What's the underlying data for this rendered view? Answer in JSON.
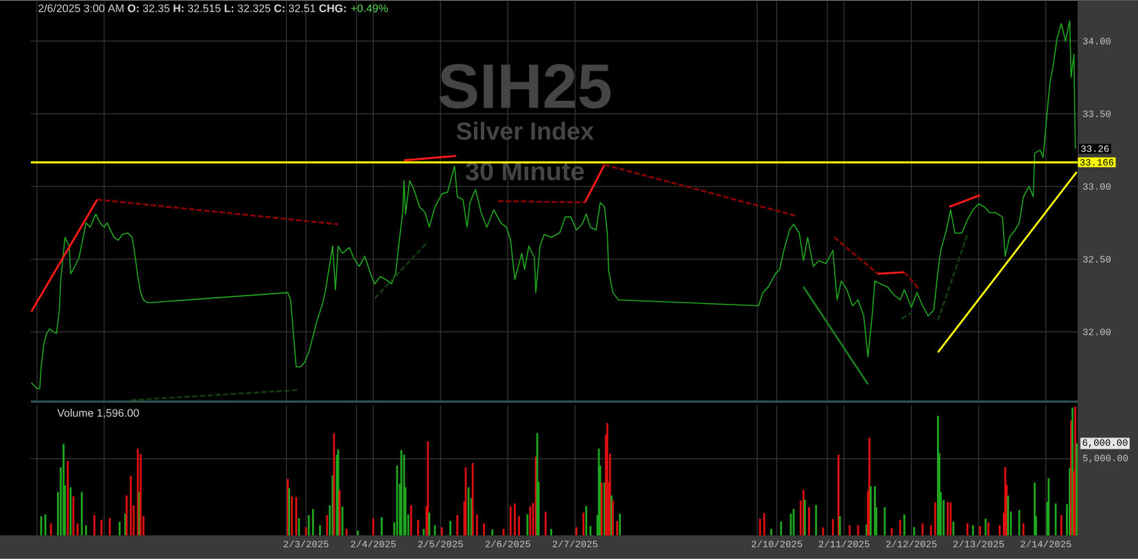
{
  "chart_data": [
    {
      "type": "line",
      "title": "2/6/2025 3:00 AM **O:** 32.35 **H:** 32.515 **L:** 32.325 **C:** 32.51 **CHG:**",
      "subtitle": "+0.49%",
      "annotations": [
        "SIH25",
        "Silver Index",
        "30 Minute",
        {
          "text": "33.26",
          "x": "2025-02-14T10:30",
          "y": 33.26
        }
      ],
      "x": [
        "2025-01-29T22:00",
        "2025-01-30T00:00",
        "2025-01-30T01:00",
        "2025-01-30T01:30",
        "2025-01-30T02:30",
        "2025-01-30T03:30",
        "2025-01-30T04:30",
        "2025-01-30T06:00",
        "2025-01-30T07:00",
        "2025-01-30T08:00",
        "2025-01-30T08:30",
        "2025-01-30T10:00",
        "2025-01-30T11:30",
        "2025-01-30T12:00",
        "2025-01-30T13:00",
        "2025-01-30T15:00",
        "2025-01-30T16:30",
        "2025-01-30T17:30",
        "2025-01-30T19:00",
        "2025-01-30T21:00",
        "2025-01-30T22:30",
        "2025-01-31T00:00",
        "2025-01-31T01:00",
        "2025-01-31T03:30",
        "2025-01-31T05:00",
        "2025-01-31T06:30",
        "2025-01-31T08:30",
        "2025-01-31T10:00",
        "2025-01-31T11:00",
        "2025-01-31T12:00",
        "2025-01-31T13:00",
        "2025-01-31T14:00",
        "2025-01-31T15:30",
        "2025-02-02T17:30",
        "2025-02-02T18:30",
        "2025-02-02T19:30",
        "2025-02-02T20:30",
        "2025-02-02T22:00",
        "2025-02-02T23:30",
        "2025-02-03T01:00",
        "2025-02-03T02:30",
        "2025-02-03T04:00",
        "2025-02-03T06:00",
        "2025-02-03T07:00",
        "2025-02-03T09:30",
        "2025-02-03T10:30",
        "2025-02-03T11:30",
        "2025-02-03T13:00",
        "2025-02-03T15:30",
        "2025-02-03T17:00",
        "2025-02-03T19:00",
        "2025-02-03T21:00",
        "2025-02-03T23:00",
        "2025-02-04T00:30",
        "2025-02-04T02:30",
        "2025-02-04T04:30",
        "2025-02-04T06:30",
        "2025-02-04T08:00",
        "2025-02-04T09:00",
        "2025-02-04T10:30",
        "2025-02-04T11:00",
        "2025-02-04T11:30",
        "2025-02-04T13:00",
        "2025-02-04T14:30",
        "2025-02-04T16:30",
        "2025-02-04T18:30",
        "2025-02-04T20:00",
        "2025-02-04T22:00",
        "2025-02-05T00:30",
        "2025-02-05T02:30",
        "2025-02-05T05:00",
        "2025-02-05T06:00",
        "2025-02-05T08:00",
        "2025-02-05T09:30",
        "2025-02-05T10:30",
        "2025-02-05T12:30",
        "2025-02-05T14:30",
        "2025-02-05T16:30",
        "2025-02-05T19:00",
        "2025-02-05T21:30",
        "2025-02-05T23:30",
        "2025-02-06T01:00",
        "2025-02-06T02:30",
        "2025-02-06T05:00",
        "2025-02-06T06:00",
        "2025-02-06T07:30",
        "2025-02-06T09:30",
        "2025-02-06T10:00",
        "2025-02-06T11:30",
        "2025-02-06T13:00",
        "2025-02-06T15:30",
        "2025-02-06T18:30",
        "2025-02-06T20:30",
        "2025-02-06T22:30",
        "2025-02-07T00:30",
        "2025-02-07T02:30",
        "2025-02-07T04:00",
        "2025-02-07T05:30",
        "2025-02-07T07:30",
        "2025-02-07T09:00",
        "2025-02-07T10:30",
        "2025-02-07T11:30",
        "2025-02-07T12:00",
        "2025-02-07T13:30",
        "2025-02-07T15:30",
        "2025-02-09T17:30",
        "2025-02-09T19:00",
        "2025-02-09T21:00",
        "2025-02-09T23:30",
        "2025-02-10T01:00",
        "2025-02-10T02:30",
        "2025-02-10T04:30",
        "2025-02-10T06:00",
        "2025-02-10T08:00",
        "2025-02-10T09:30",
        "2025-02-10T11:00",
        "2025-02-10T13:00",
        "2025-02-10T15:00",
        "2025-02-10T17:30",
        "2025-02-10T20:00",
        "2025-02-10T21:30",
        "2025-02-10T23:00",
        "2025-02-11T01:00",
        "2025-02-11T03:00",
        "2025-02-11T05:00",
        "2025-02-11T07:00",
        "2025-02-11T08:30",
        "2025-02-11T10:00",
        "2025-02-11T11:00",
        "2025-02-11T13:00",
        "2025-02-11T15:30",
        "2025-02-11T17:30",
        "2025-02-11T20:00",
        "2025-02-11T21:30",
        "2025-02-12T00:00",
        "2025-02-12T02:00",
        "2025-02-12T04:00",
        "2025-02-12T06:00",
        "2025-02-12T08:00",
        "2025-02-12T09:30",
        "2025-02-12T10:30",
        "2025-02-12T12:30",
        "2025-02-12T14:00",
        "2025-02-12T15:30",
        "2025-02-12T18:00",
        "2025-02-12T20:00",
        "2025-02-12T22:00",
        "2025-02-13T00:00",
        "2025-02-13T02:00",
        "2025-02-13T04:00",
        "2025-02-13T06:00",
        "2025-02-13T08:30",
        "2025-02-13T09:30",
        "2025-02-13T11:00",
        "2025-02-13T13:00",
        "2025-02-13T14:30",
        "2025-02-13T16:00",
        "2025-02-13T18:00",
        "2025-02-13T19:30",
        "2025-02-13T20:00",
        "2025-02-13T22:00",
        "2025-02-13T23:00",
        "2025-02-14T00:30",
        "2025-02-14T01:30",
        "2025-02-14T02:30",
        "2025-02-14T04:00",
        "2025-02-14T05:30",
        "2025-02-14T07:00",
        "2025-02-14T08:30",
        "2025-02-14T09:00",
        "2025-02-14T10:00",
        "2025-02-14T10:30"
      ],
      "series": [
        {
          "color": "#1fa81f",
          "values": [
            31.65,
            31.61,
            31.61,
            31.76,
            31.92,
            31.99,
            32.02,
            32.0,
            31.99,
            32.15,
            32.36,
            32.65,
            32.59,
            32.4,
            32.43,
            32.51,
            32.65,
            32.75,
            32.72,
            32.81,
            32.75,
            32.72,
            32.75,
            32.65,
            32.63,
            32.67,
            32.68,
            32.65,
            32.52,
            32.38,
            32.27,
            32.22,
            32.2,
            32.27,
            32.22,
            31.99,
            31.76,
            31.76,
            31.79,
            31.86,
            31.97,
            32.08,
            32.2,
            32.29,
            32.59,
            32.29,
            32.59,
            32.54,
            32.58,
            32.51,
            32.45,
            32.52,
            32.4,
            32.33,
            32.38,
            32.36,
            32.33,
            32.4,
            32.58,
            32.82,
            33.04,
            32.81,
            33.04,
            32.98,
            32.86,
            32.82,
            32.72,
            32.86,
            32.95,
            32.96,
            33.14,
            32.93,
            32.91,
            32.72,
            32.89,
            32.98,
            32.82,
            32.72,
            32.84,
            32.75,
            32.72,
            32.63,
            32.36,
            32.54,
            32.43,
            32.59,
            32.51,
            32.27,
            32.59,
            32.67,
            32.65,
            32.68,
            32.79,
            32.79,
            32.7,
            32.74,
            32.81,
            32.72,
            32.7,
            32.89,
            32.86,
            32.68,
            32.42,
            32.27,
            32.22,
            32.18,
            32.27,
            32.31,
            32.4,
            32.43,
            32.56,
            32.7,
            32.74,
            32.68,
            32.49,
            32.65,
            32.45,
            32.49,
            32.47,
            32.56,
            32.22,
            32.35,
            32.29,
            32.18,
            32.22,
            32.11,
            31.83,
            32.11,
            32.35,
            32.33,
            32.31,
            32.26,
            32.22,
            32.29,
            32.17,
            32.27,
            32.18,
            32.11,
            32.15,
            32.42,
            32.56,
            32.7,
            32.84,
            32.68,
            32.68,
            32.77,
            32.84,
            32.88,
            32.86,
            32.82,
            32.82,
            32.79,
            32.52,
            32.65,
            32.7,
            32.75,
            32.93,
            33.0,
            32.93,
            33.23,
            33.25,
            33.2,
            33.52,
            33.72,
            33.82,
            34.02,
            34.12,
            34.0,
            34.14,
            33.75,
            33.91,
            33.26
          ]
        },
        {
          "type": "line",
          "color": "#ff1a1a",
          "line_style": "solid",
          "x": [
            "2025-01-29T22:00",
            "2025-01-30T21:30"
          ],
          "values": [
            32.14,
            32.91
          ]
        },
        {
          "type": "line",
          "color": "#8b0000",
          "line_style": "dashed",
          "x": [
            "2025-01-30T21:30",
            "2025-02-03T11:30"
          ],
          "values": [
            32.91,
            32.74
          ]
        },
        {
          "type": "line",
          "color": "#103c10",
          "line_style": "dashed",
          "x": [
            "2025-01-31T09:30",
            "2025-02-02T21:00"
          ],
          "values": [
            31.53,
            31.6
          ]
        },
        {
          "type": "line",
          "color": "#103c10",
          "line_style": "dashed",
          "x": [
            "2025-02-04T00:30",
            "2025-02-04T19:30"
          ],
          "values": [
            32.23,
            32.62
          ]
        },
        {
          "type": "line",
          "color": "#ff1a1a",
          "line_style": "solid",
          "x": [
            "2025-02-04T11:00",
            "2025-02-05T05:30"
          ],
          "values": [
            33.18,
            33.21
          ]
        },
        {
          "type": "line",
          "color": "#8b0000",
          "line_style": "dashed",
          "x": [
            "2025-02-05T20:30",
            "2025-02-07T03:30"
          ],
          "values": [
            32.9,
            32.89
          ]
        },
        {
          "type": "line",
          "color": "#ff1a1a",
          "line_style": "solid",
          "x": [
            "2025-02-07T03:30",
            "2025-02-07T10:30"
          ],
          "values": [
            32.89,
            33.15
          ]
        },
        {
          "type": "line",
          "color": "#8b0000",
          "line_style": "dashed",
          "x": [
            "2025-02-07T10:30",
            "2025-02-10T06:30"
          ],
          "values": [
            33.15,
            32.8
          ]
        },
        {
          "type": "line",
          "color": "#1e7a1e",
          "line_style": "solid",
          "x": [
            "2025-02-10T09:30",
            "2025-02-11T08:30"
          ],
          "values": [
            32.31,
            31.64
          ]
        },
        {
          "type": "line",
          "color": "#8b0000",
          "line_style": "dashed",
          "x": [
            "2025-02-10T20:30",
            "2025-02-11T12:00"
          ],
          "values": [
            32.65,
            32.4
          ]
        },
        {
          "type": "line",
          "color": "#ff1a1a",
          "line_style": "solid",
          "x": [
            "2025-02-11T12:00",
            "2025-02-11T21:30"
          ],
          "values": [
            32.4,
            32.41
          ]
        },
        {
          "type": "line",
          "color": "#8b0000",
          "line_style": "dashed",
          "x": [
            "2025-02-11T21:30",
            "2025-02-12T02:30"
          ],
          "values": [
            32.41,
            32.3
          ]
        },
        {
          "type": "line",
          "color": "#103c10",
          "line_style": "dashed",
          "x": [
            "2025-02-11T20:30",
            "2025-02-12T00:00"
          ],
          "values": [
            32.09,
            32.13
          ]
        },
        {
          "type": "line",
          "color": "#103c10",
          "line_style": "dashed",
          "x": [
            "2025-02-12T09:30",
            "2025-02-12T20:00"
          ],
          "values": [
            32.08,
            32.67
          ]
        },
        {
          "type": "line",
          "color": "#ff1a1a",
          "line_style": "solid",
          "x": [
            "2025-02-12T13:30",
            "2025-02-13T00:30"
          ],
          "values": [
            32.86,
            32.94
          ]
        },
        {
          "type": "line",
          "color": "#ffff00",
          "line_style": "solid",
          "x": [
            "2025-02-12T09:30",
            "2025-02-14T11:00"
          ],
          "values": [
            31.86,
            33.1
          ]
        }
      ],
      "ref_lines": [
        {
          "axis": "y",
          "value": 33.166,
          "label": "33.166",
          "color": "#ffff00"
        }
      ],
      "xlim": [
        "2025-01-29T21:50",
        "2025-02-14T11:20"
      ],
      "ylim": [
        31.52,
        34.28
      ],
      "xticks": [
        {
          "value": "2025-01-30",
          "label": null
        },
        {
          "value": "2025-01-31",
          "label": null
        },
        {
          "value": "2025-02-02T17:00",
          "label": null
        },
        {
          "value": "2025-02-03",
          "label": null
        },
        {
          "value": "2025-02-03T18:00",
          "label": null
        },
        {
          "value": "2025-02-04",
          "label": null
        },
        {
          "value": "2025-02-05",
          "label": null
        },
        {
          "value": "2025-02-06",
          "label": null
        },
        {
          "value": "2025-02-07",
          "label": null
        },
        {
          "value": "2025-02-09T17:00",
          "label": null
        },
        {
          "value": "2025-02-10",
          "label": null
        },
        {
          "value": "2025-02-10T18:00",
          "label": null
        },
        {
          "value": "2025-02-11",
          "label": null
        },
        {
          "value": "2025-02-12",
          "label": null
        },
        {
          "value": "2025-02-13",
          "label": null
        },
        {
          "value": "2025-02-14",
          "label": null
        }
      ],
      "yticks": [
        {
          "value": 32,
          "label": "32.00"
        },
        {
          "value": 32.5,
          "label": "32.50"
        },
        {
          "value": 33,
          "label": "33.00"
        },
        {
          "value": 33.5,
          "label": "33.50"
        },
        {
          "value": 34,
          "label": "34.00"
        }
      ],
      "tick_labels": "y",
      "grid": true
    },
    {
      "type": "bar",
      "title": "Volume 1,596.00",
      "annotations": [
        {
          "text": "6,000.00",
          "x": "2025-02-14T11:00",
          "y": 6000
        }
      ],
      "x": [
        "2025-01-30T01:30",
        "2025-01-30T03:00",
        "2025-01-30T05:00",
        "2025-01-30T07:30",
        "2025-01-30T08:30",
        "2025-01-30T09:30",
        "2025-01-30T10:00",
        "2025-01-30T11:00",
        "2025-01-30T12:00",
        "2025-01-30T13:00",
        "2025-01-30T14:30",
        "2025-01-30T16:00",
        "2025-01-30T17:30",
        "2025-01-30T20:30",
        "2025-01-30T23:00",
        "2025-01-31T02:00",
        "2025-01-31T05:30",
        "2025-01-31T07:30",
        "2025-01-31T08:00",
        "2025-01-31T09:30",
        "2025-01-31T10:30",
        "2025-01-31T12:00",
        "2025-01-31T12:30",
        "2025-01-31T13:00",
        "2025-01-31T14:00",
        "2025-02-02T17:30",
        "2025-02-02T18:00",
        "2025-02-02T19:00",
        "2025-02-02T20:30",
        "2025-02-02T21:30",
        "2025-02-03T00:00",
        "2025-02-03T01:00",
        "2025-02-03T02:30",
        "2025-02-03T05:00",
        "2025-02-03T07:30",
        "2025-02-03T08:30",
        "2025-02-03T09:30",
        "2025-02-03T10:00",
        "2025-02-03T11:00",
        "2025-02-03T11:30",
        "2025-02-03T12:00",
        "2025-02-03T13:00",
        "2025-02-03T14:30",
        "2025-02-03T18:30",
        "2025-02-04T00:00",
        "2025-02-04T03:00",
        "2025-02-04T07:30",
        "2025-02-04T08:30",
        "2025-02-04T09:30",
        "2025-02-04T10:00",
        "2025-02-04T11:00",
        "2025-02-04T11:30",
        "2025-02-04T12:30",
        "2025-02-04T13:30",
        "2025-02-04T16:00",
        "2025-02-04T18:00",
        "2025-02-04T19:00",
        "2025-02-04T19:30",
        "2025-02-04T20:00",
        "2025-02-04T22:00",
        "2025-02-05T00:30",
        "2025-02-05T03:30",
        "2025-02-05T06:00",
        "2025-02-05T08:30",
        "2025-02-05T09:00",
        "2025-02-05T10:00",
        "2025-02-05T11:00",
        "2025-02-05T11:30",
        "2025-02-05T13:00",
        "2025-02-05T15:30",
        "2025-02-05T18:30",
        "2025-02-05T22:30",
        "2025-02-06T01:00",
        "2025-02-06T02:30",
        "2025-02-06T04:00",
        "2025-02-06T07:00",
        "2025-02-06T08:00",
        "2025-02-06T09:00",
        "2025-02-06T10:00",
        "2025-02-06T10:30",
        "2025-02-06T11:00",
        "2025-02-06T13:30",
        "2025-02-06T15:30",
        "2025-02-07T00:30",
        "2025-02-07T03:00",
        "2025-02-07T04:00",
        "2025-02-07T05:30",
        "2025-02-07T08:00",
        "2025-02-07T08:30",
        "2025-02-07T09:00",
        "2025-02-07T09:30",
        "2025-02-07T10:30",
        "2025-02-07T11:00",
        "2025-02-07T11:30",
        "2025-02-07T12:00",
        "2025-02-07T12:30",
        "2025-02-07T13:00",
        "2025-02-07T13:30",
        "2025-02-07T15:00",
        "2025-02-07T16:00",
        "2025-02-09T18:00",
        "2025-02-09T19:30",
        "2025-02-09T22:00",
        "2025-02-10T01:30",
        "2025-02-10T05:00",
        "2025-02-10T06:00",
        "2025-02-10T08:30",
        "2025-02-10T09:30",
        "2025-02-10T10:00",
        "2025-02-10T11:30",
        "2025-02-10T14:00",
        "2025-02-10T16:30",
        "2025-02-10T20:00",
        "2025-02-10T22:00",
        "2025-02-10T22:30",
        "2025-02-11T02:00",
        "2025-02-11T05:00",
        "2025-02-11T08:00",
        "2025-02-11T08:30",
        "2025-02-11T09:00",
        "2025-02-11T09:30",
        "2025-02-11T11:00",
        "2025-02-11T11:30",
        "2025-02-11T14:30",
        "2025-02-11T17:00",
        "2025-02-11T20:00",
        "2025-02-11T21:30",
        "2025-02-12T01:00",
        "2025-02-12T04:00",
        "2025-02-12T07:00",
        "2025-02-12T08:30",
        "2025-02-12T09:30",
        "2025-02-12T10:00",
        "2025-02-12T10:30",
        "2025-02-12T11:30",
        "2025-02-12T13:00",
        "2025-02-12T14:00",
        "2025-02-12T15:00",
        "2025-02-12T20:00",
        "2025-02-12T22:00",
        "2025-02-13T00:30",
        "2025-02-13T02:30",
        "2025-02-13T03:30",
        "2025-02-13T07:30",
        "2025-02-13T09:00",
        "2025-02-13T09:30",
        "2025-02-13T10:00",
        "2025-02-13T10:30",
        "2025-02-13T11:30",
        "2025-02-13T14:30",
        "2025-02-13T16:00",
        "2025-02-13T20:00",
        "2025-02-13T20:30",
        "2025-02-14T00:30",
        "2025-02-14T01:00",
        "2025-02-14T03:30",
        "2025-02-14T05:30",
        "2025-02-14T07:30",
        "2025-02-14T08:30",
        "2025-02-14T09:00",
        "2025-02-14T09:30",
        "2025-02-14T10:00",
        "2025-02-14T10:30",
        "2025-02-14T11:00"
      ],
      "values": [
        1250,
        1370,
        780,
        2830,
        4440,
        5970,
        3260,
        4860,
        3140,
        2550,
        780,
        2830,
        660,
        1320,
        1010,
        1130,
        900,
        1420,
        2600,
        3890,
        1960,
        5660,
        2830,
        5310,
        1250,
        3680,
        3070,
        2550,
        2500,
        1130,
        540,
        1320,
        1720,
        660,
        1320,
        1960,
        3920,
        6660,
        5260,
        5620,
        2970,
        1890,
        420,
        310,
        1090,
        1180,
        850,
        4550,
        3370,
        5570,
        5260,
        3140,
        1370,
        1960,
        1010,
        420,
        1910,
        6140,
        1490,
        660,
        540,
        940,
        1320,
        2220,
        4440,
        3140,
        2430,
        4720,
        1370,
        780,
        380,
        420,
        1890,
        2080,
        1250,
        1370,
        1890,
        2120,
        5140,
        6680,
        3490,
        1530,
        420,
        540,
        1490,
        1910,
        610,
        1320,
        5660,
        4550,
        3450,
        3450,
        6560,
        7320,
        3490,
        5330,
        2600,
        2270,
        940,
        1420,
        1090,
        1460,
        420,
        900,
        1420,
        1720,
        2270,
        2950,
        2310,
        1840,
        1980,
        520,
        1060,
        5260,
        1250,
        660,
        660,
        710,
        2900,
        6370,
        3210,
        3210,
        1840,
        1840,
        470,
        1010,
        1370,
        540,
        780,
        660,
        2150,
        7790,
        5380,
        2830,
        2310,
        2190,
        2150,
        900,
        780,
        660,
        610,
        1090,
        850,
        660,
        1490,
        4440,
        3300,
        2600,
        1560,
        1650,
        780,
        3450,
        1250,
        2190,
        3730,
        2080,
        1320,
        2030,
        4390,
        7500,
        8330,
        4200,
        8400,
        6000
      ],
      "colors": [
        "#1fa81f",
        "#1fa81f",
        "#e01010",
        "#1fa81f",
        "#1fa81f",
        "#1fa81f",
        "#1fa81f",
        "#e01010",
        "#1fa81f",
        "#e01010",
        "#e01010",
        "#1fa81f",
        "#1fa81f",
        "#e01010",
        "#e01010",
        "#e01010",
        "#1fa81f",
        "#1fa81f",
        "#e01010",
        "#e01010",
        "#e01010",
        "#e01010",
        "#1fa81f",
        "#e01010",
        "#e01010",
        "#e01010",
        "#1fa81f",
        "#e01010",
        "#e01010",
        "#1fa81f",
        "#e01010",
        "#1fa81f",
        "#1fa81f",
        "#1fa81f",
        "#e01010",
        "#1fa81f",
        "#1fa81f",
        "#e01010",
        "#1fa81f",
        "#1fa81f",
        "#e01010",
        "#1fa81f",
        "#e01010",
        "#1fa81f",
        "#e01010",
        "#1fa81f",
        "#1fa81f",
        "#1fa81f",
        "#1fa81f",
        "#1fa81f",
        "#1fa81f",
        "#1fa81f",
        "#1fa81f",
        "#e01010",
        "#e01010",
        "#1fa81f",
        "#e01010",
        "#e01010",
        "#1fa81f",
        "#1fa81f",
        "#e01010",
        "#1fa81f",
        "#e01010",
        "#e01010",
        "#e01010",
        "#1fa81f",
        "#1fa81f",
        "#e01010",
        "#e01010",
        "#e01010",
        "#1fa81f",
        "#e01010",
        "#e01010",
        "#e01010",
        "#e01010",
        "#1fa81f",
        "#e01010",
        "#e01010",
        "#e01010",
        "#1fa81f",
        "#1fa81f",
        "#e01010",
        "#1fa81f",
        "#e01010",
        "#e01010",
        "#1fa81f",
        "#1fa81f",
        "#1fa81f",
        "#1fa81f",
        "#1fa81f",
        "#e01010",
        "#1fa81f",
        "#e01010",
        "#e01010",
        "#e01010",
        "#e01010",
        "#1fa81f",
        "#e01010",
        "#e01010",
        "#1fa81f",
        "#e01010",
        "#e01010",
        "#1fa81f",
        "#1fa81f",
        "#1fa81f",
        "#1fa81f",
        "#e01010",
        "#e01010",
        "#1fa81f",
        "#e01010",
        "#1fa81f",
        "#e01010",
        "#e01010",
        "#e01010",
        "#1fa81f",
        "#e01010",
        "#e01010",
        "#1fa81f",
        "#e01010",
        "#e01010",
        "#1fa81f",
        "#1fa81f",
        "#1fa81f",
        "#1fa81f",
        "#e01010",
        "#e01010",
        "#1fa81f",
        "#1fa81f",
        "#e01010",
        "#e01010",
        "#e01010",
        "#1fa81f",
        "#1fa81f",
        "#1fa81f",
        "#1fa81f",
        "#e01010",
        "#e01010",
        "#1fa81f",
        "#e01010",
        "#1fa81f",
        "#e01010",
        "#1fa81f",
        "#e01010",
        "#e01010",
        "#e01010",
        "#e01010",
        "#e01010",
        "#1fa81f",
        "#1fa81f",
        "#1fa81f",
        "#e01010",
        "#1fa81f",
        "#1fa81f",
        "#1fa81f",
        "#1fa81f",
        "#1fa81f",
        "#e01010",
        "#1fa81f",
        "#1fa81f",
        "#e01010",
        "#1fa81f",
        "#e01010",
        "#e01010",
        "#1fa81f"
      ],
      "xlim": [
        "2025-01-29T21:50",
        "2025-02-14T11:20"
      ],
      "ylim": [
        0,
        8500
      ],
      "xticks": [
        {
          "value": "2025-01-30",
          "label": null
        },
        {
          "value": "2025-01-31",
          "label": null
        },
        {
          "value": "2025-02-02T17:00",
          "label": null
        },
        {
          "value": "2025-02-03",
          "label": "2/3/2025"
        },
        {
          "value": "2025-02-03T18:00",
          "label": null
        },
        {
          "value": "2025-02-04",
          "label": "2/4/2025"
        },
        {
          "value": "2025-02-05",
          "label": "2/5/2025"
        },
        {
          "value": "2025-02-06",
          "label": "2/6/2025"
        },
        {
          "value": "2025-02-07",
          "label": "2/7/2025"
        },
        {
          "value": "2025-02-09T17:00",
          "label": null
        },
        {
          "value": "2025-02-10",
          "label": "2/10/2025"
        },
        {
          "value": "2025-02-10T18:00",
          "label": null
        },
        {
          "value": "2025-02-11",
          "label": "2/11/2025"
        },
        {
          "value": "2025-02-12",
          "label": "2/12/2025"
        },
        {
          "value": "2025-02-13",
          "label": "2/13/2025"
        },
        {
          "value": "2025-02-14",
          "label": "2/14/2025"
        }
      ],
      "yticks": [
        {
          "value": 5000,
          "label": "5,000.00"
        }
      ],
      "grid": true
    }
  ]
}
